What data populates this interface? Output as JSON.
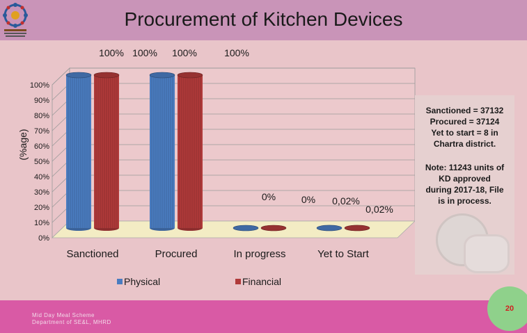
{
  "title": "Procurement of Kitchen Devices",
  "chart_data": {
    "type": "bar",
    "categories": [
      "Sanctioned",
      "Procured",
      "In progress",
      "Yet to Start"
    ],
    "series": [
      {
        "name": "Physical",
        "values": [
          100,
          100,
          0,
          0.02
        ],
        "color": "#4a7cc0"
      },
      {
        "name": "Financial",
        "values": [
          100,
          100,
          0,
          0.02
        ],
        "color": "#b03a3a"
      }
    ],
    "data_labels": [
      "100%",
      "100%",
      "100%",
      "100%",
      "0%",
      "0%",
      "0,02%",
      "0,02%"
    ],
    "ylabel": "(%age)",
    "yticks": [
      "0%",
      "10%",
      "20%",
      "30%",
      "40%",
      "50%",
      "60%",
      "70%",
      "80%",
      "90%",
      "100%"
    ],
    "ylim": [
      0,
      100
    ],
    "grid": true,
    "legend_position": "bottom"
  },
  "notes": {
    "summary": [
      "Sanctioned = 37132",
      "Procured = 37124",
      "Yet to start = 8 in",
      "Chartra district."
    ],
    "approval": [
      "Note: 11243 units of",
      "KD  approved",
      "during 2017-18, File",
      "is in process."
    ]
  },
  "footer": {
    "line1": "Mid Day Meal Scheme",
    "line2": "Department of SE&L, MHRD"
  },
  "page_number": "20",
  "colors": {
    "header": "#c994b8",
    "background": "#e9c5c9",
    "footer": "#d95aa5",
    "page_circle": "#8fd18b"
  }
}
